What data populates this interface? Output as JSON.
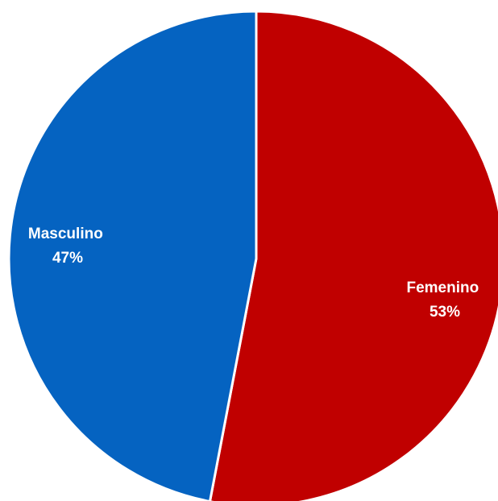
{
  "chart_data": {
    "type": "pie",
    "start_angle_deg": 0,
    "direction": "clockwise",
    "slices": [
      {
        "label": "Femenino",
        "value": 53,
        "display": "53%",
        "color": "#C00000"
      },
      {
        "label": "Masculino",
        "value": 47,
        "display": "47%",
        "color": "#0563C1"
      }
    ]
  }
}
